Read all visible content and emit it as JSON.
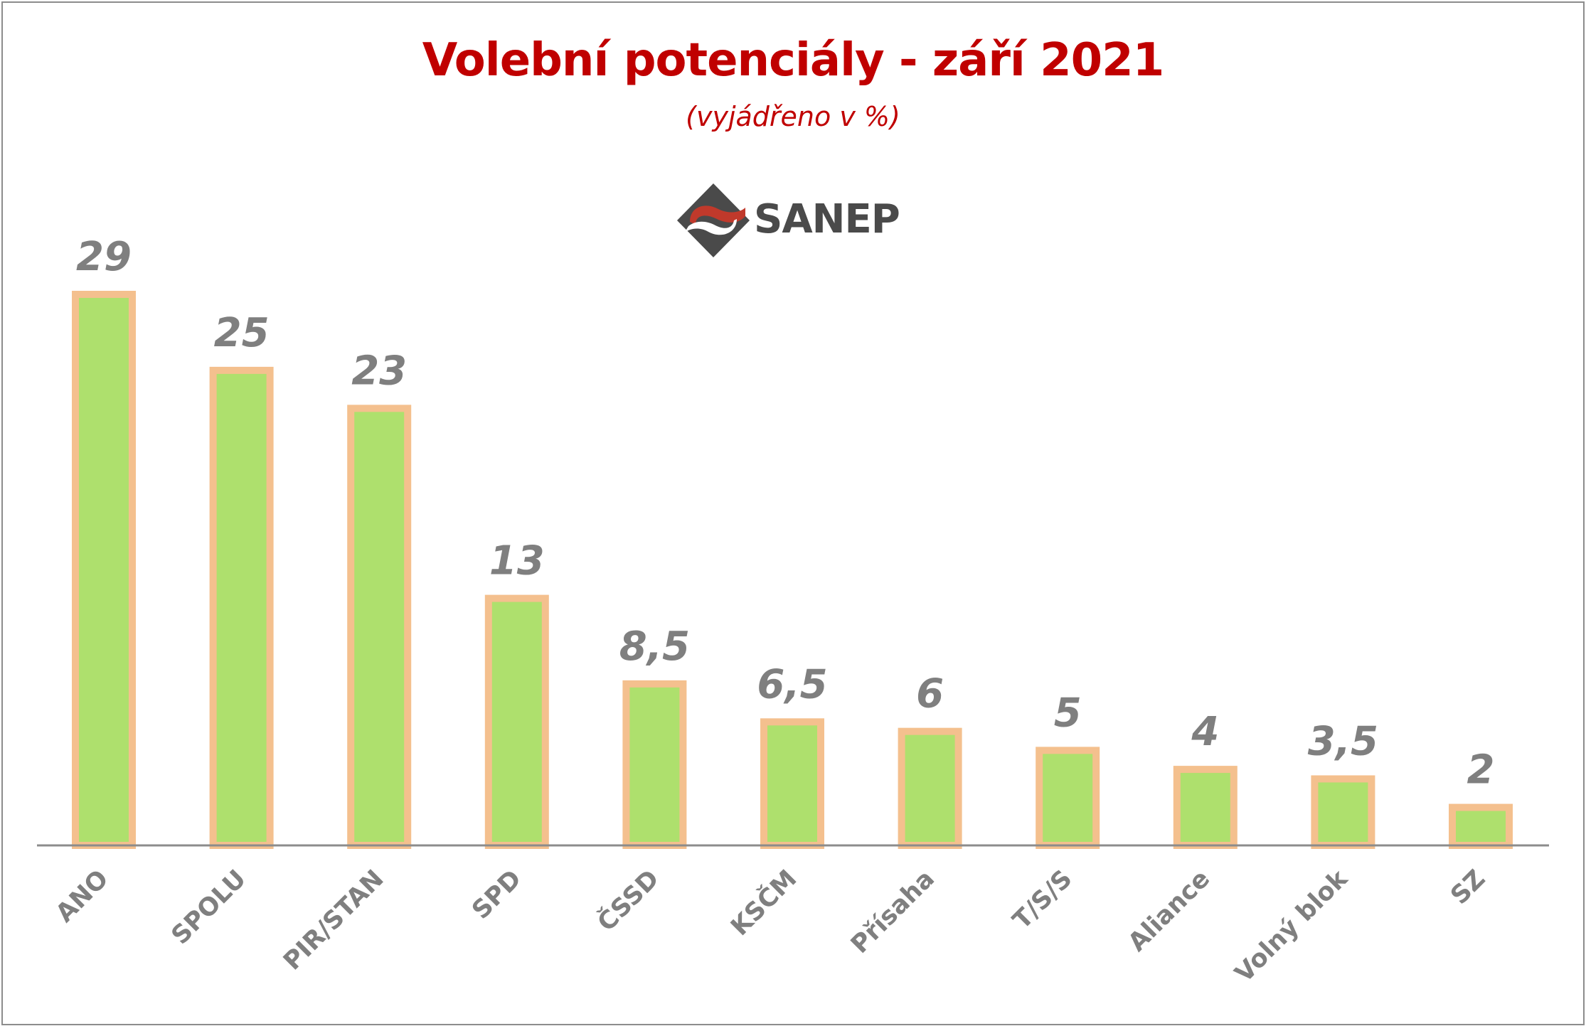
{
  "colors": {
    "title": "#c00000",
    "bar_fill": "#aee06d",
    "bar_border": "#f4c08e",
    "value_label": "#7f7f7f",
    "axis_label": "#7f7f7f",
    "axis_line": "#8c8c8c",
    "logo_dark": "#4a4a4a",
    "logo_red": "#c0392b"
  },
  "logo": {
    "text": "SANEP",
    "icon": "sanep-logo-icon"
  },
  "chart_data": {
    "type": "bar",
    "title": "Volební potenciály - září 2021",
    "subtitle": "(vyjádřeno v %)",
    "categories": [
      "ANO",
      "SPOLU",
      "PIR/STAN",
      "SPD",
      "ČSSD",
      "KSČM",
      "Přísaha",
      "T/S/S",
      "Aliance",
      "Volný blok",
      "SZ"
    ],
    "values": [
      29,
      25,
      23,
      13,
      8.5,
      6.5,
      6,
      5,
      4,
      3.5,
      2
    ],
    "value_labels": [
      "29",
      "25",
      "23",
      "13",
      "8,5",
      "6,5",
      "6",
      "5",
      "4",
      "3,5",
      "2"
    ],
    "ylim": [
      0,
      29
    ],
    "grid": false,
    "legend": "none",
    "xlabel": "",
    "ylabel": ""
  }
}
